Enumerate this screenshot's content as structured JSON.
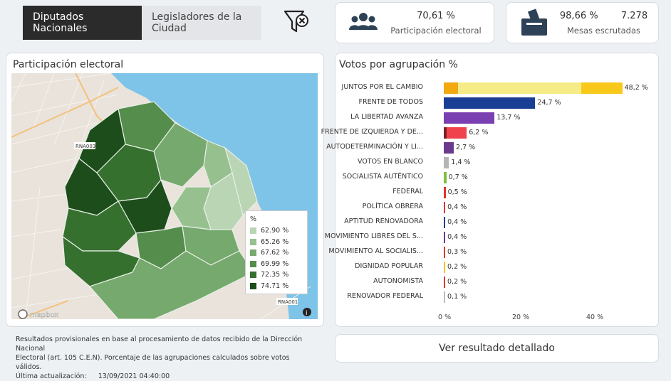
{
  "tabs": [
    {
      "label": "Diputados Nacionales",
      "active": true
    },
    {
      "label": "Legisladores de la Ciudad",
      "active": false
    }
  ],
  "kpi_participation": {
    "value": "70,61 %",
    "label": "Participación electoral"
  },
  "kpi_tables": {
    "percent": "98,66 %",
    "count": "7.278",
    "label": "Mesas escrutadas"
  },
  "map_panel": {
    "title": "Participación electoral",
    "attribution": "mapbox",
    "road_labels": [
      "RNA003",
      "RNA001"
    ],
    "legend": {
      "title": "%",
      "items": [
        {
          "label": "62.90 %",
          "color": "#b9d5b4"
        },
        {
          "label": "65.26 %",
          "color": "#97c08f"
        },
        {
          "label": "67.62 %",
          "color": "#76a96d"
        },
        {
          "label": "69.99 %",
          "color": "#548d4c"
        },
        {
          "label": "72.35 %",
          "color": "#35702f"
        },
        {
          "label": "74.71 %",
          "color": "#1c4d1a"
        }
      ]
    }
  },
  "chart_panel": {
    "title": "Votos por agrupación %"
  },
  "chart_data": {
    "type": "bar",
    "orientation": "horizontal",
    "title": "Votos por agrupación %",
    "categories": [
      "JUNTOS POR EL CAMBIO",
      "FRENTE DE TODOS",
      "LA LIBERTAD AVANZA",
      "FRENTE DE IZQUIERDA Y DE...",
      "AUTODETERMINACIÓN Y LI...",
      "VOTOS EN BLANCO",
      "SOCIALISTA AUTÉNTICO",
      "FEDERAL",
      "POLÍTICA OBRERA",
      "APTITUD RENOVADORA",
      "MOVIMIENTO LIBRES DEL S...",
      "MOVIMIENTO AL SOCIALIS...",
      "DIGNIDAD POPULAR",
      "AUTONOMISTA",
      "RENOVADOR FEDERAL"
    ],
    "values": [
      48.2,
      24.7,
      13.7,
      6.2,
      2.7,
      1.4,
      0.7,
      0.5,
      0.4,
      0.4,
      0.4,
      0.3,
      0.2,
      0.2,
      0.1
    ],
    "value_labels": [
      "48,2 %",
      "24,7 %",
      "13,7 %",
      "6,2 %",
      "2,7 %",
      "1,4 %",
      "0,7 %",
      "0,5 %",
      "0,4 %",
      "0,4 %",
      "0,4 %",
      "0,3 %",
      "0,2 %",
      "0,2 %",
      "0,1 %"
    ],
    "colors": [
      "#f5ec88",
      "#1b3e95",
      "#7a3fb0",
      "#f0424c",
      "#6a3a8c",
      "#b5b5b5",
      "#7fbf3f",
      "#e0342c",
      "#e0342c",
      "#1b3e95",
      "#6a3a8c",
      "#e0342c",
      "#f0c419",
      "#e0342c",
      "#bbbbbb"
    ],
    "xlim": [
      0,
      50
    ],
    "xticks": [
      "0 %",
      "20 %",
      "40 %"
    ],
    "grid": false
  },
  "footnote": {
    "line1": "Resultados provisionales en base al procesamiento de datos recibido de la Dirección Nacional",
    "line2": "Electoral (art. 105 C.E.N). Porcentaje de las agrupaciones calculados sobre votos válidos.",
    "update_label": "Última actualización:",
    "update_value": "13/09/2021 04:40:00"
  },
  "detail_button": {
    "label": "Ver resultado detallado"
  }
}
